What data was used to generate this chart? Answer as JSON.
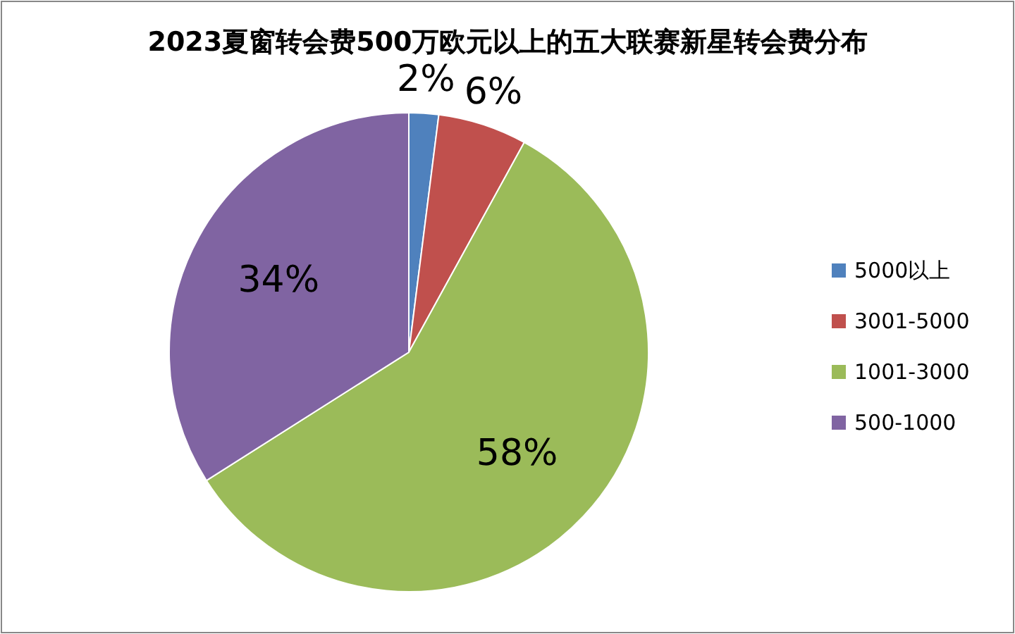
{
  "chart_data": {
    "type": "pie",
    "title": "2023夏窗转会费500万欧元以上的五大联赛新星转会费分布",
    "categories": [
      "5000以上",
      "3001-5000",
      "1001-3000",
      "500-1000"
    ],
    "values": [
      2,
      6,
      58,
      34
    ],
    "value_labels": [
      "2%",
      "6%",
      "58%",
      "34%"
    ],
    "colors": [
      "#4f81bd",
      "#c0504d",
      "#9bbb59",
      "#8064a2"
    ],
    "legend": "right"
  }
}
